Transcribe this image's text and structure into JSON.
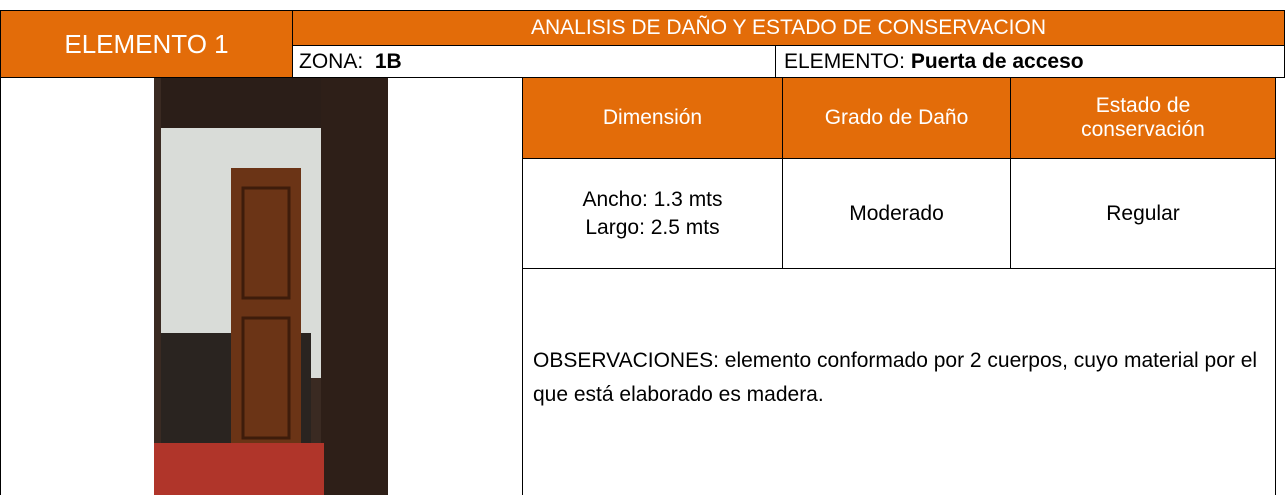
{
  "header": {
    "element_label": "ELEMENTO 1",
    "title": "ANALISIS DE DAÑO Y ESTADO DE CONSERVACION",
    "zone_label": "ZONA:",
    "zone_value": "1B",
    "element_field_label": "ELEMENTO:",
    "element_field_value": "Puerta de acceso"
  },
  "table": {
    "columns": [
      "Dimensión",
      "Grado de Daño",
      "Estado de conservación"
    ],
    "row": {
      "dimension": [
        "Ancho: 1.3 mts",
        "Largo: 2.5 mts"
      ],
      "damage": "Moderado",
      "state": "Regular"
    }
  },
  "observations": "OBSERVACIONES: elemento conformado por 2 cuerpos, cuyo material por el que está elaborado es madera."
}
